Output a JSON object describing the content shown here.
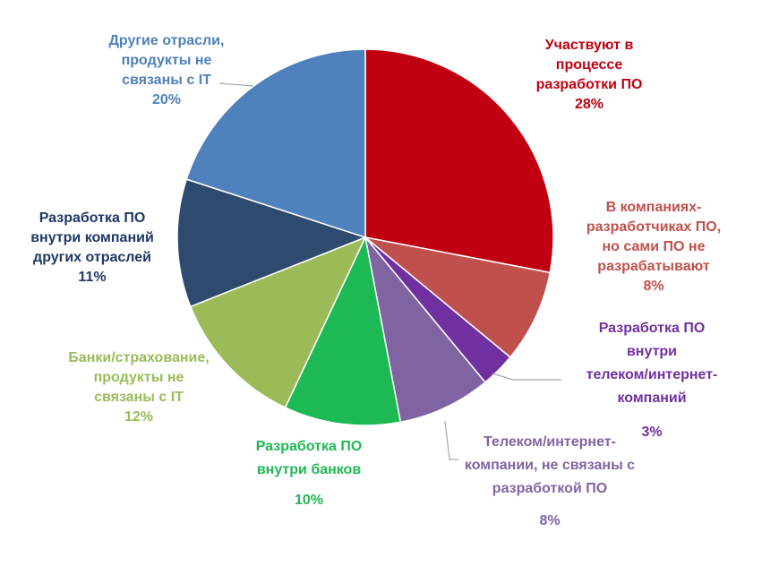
{
  "chart_data": {
    "type": "pie",
    "title": "",
    "slices": [
      {
        "label_lines": [
          "Участвуют в",
          "процессе",
          "разработки ПО"
        ],
        "percent_label": "28%",
        "value": 28,
        "color": "#C00010",
        "label_color": "#C00010"
      },
      {
        "label_lines": [
          "В компаниях-",
          "разработчиках ПО,",
          "но сами ПО не",
          "разрабатывают"
        ],
        "percent_label": "8%",
        "value": 8,
        "color": "#C0504D",
        "label_color": "#C0504D"
      },
      {
        "label_lines": [
          "Разработка ПО",
          "внутри",
          "телеком/интернет-",
          "компаний"
        ],
        "percent_label": "3%",
        "value": 3,
        "color": "#7030A0",
        "label_color": "#7030A0"
      },
      {
        "label_lines": [
          "Телеком/интернет-",
          "компании, не связаны с",
          "разработкой ПО"
        ],
        "percent_label": "8%",
        "value": 8,
        "color": "#8064A2",
        "label_color": "#8064A2"
      },
      {
        "label_lines": [
          "Разработка ПО",
          "внутри банков"
        ],
        "percent_label": "10%",
        "value": 10,
        "color": "#1DB954",
        "label_color": "#1DB954"
      },
      {
        "label_lines": [
          "Банки/страхование,",
          "продукты не",
          "связаны с IT"
        ],
        "percent_label": "12%",
        "value": 12,
        "color": "#9BBB59",
        "label_color": "#9BBB59"
      },
      {
        "label_lines": [
          "Разработка ПО",
          "внутри компаний",
          "других отраслей"
        ],
        "percent_label": "11%",
        "value": 11,
        "color": "#2E4A6F",
        "label_color": "#1F3864"
      },
      {
        "label_lines": [
          "Другие отрасли,",
          "продукты не",
          "связаны с IT"
        ],
        "percent_label": "20%",
        "value": 20,
        "color": "#4F81BD",
        "label_color": "#4F81BD"
      }
    ]
  }
}
